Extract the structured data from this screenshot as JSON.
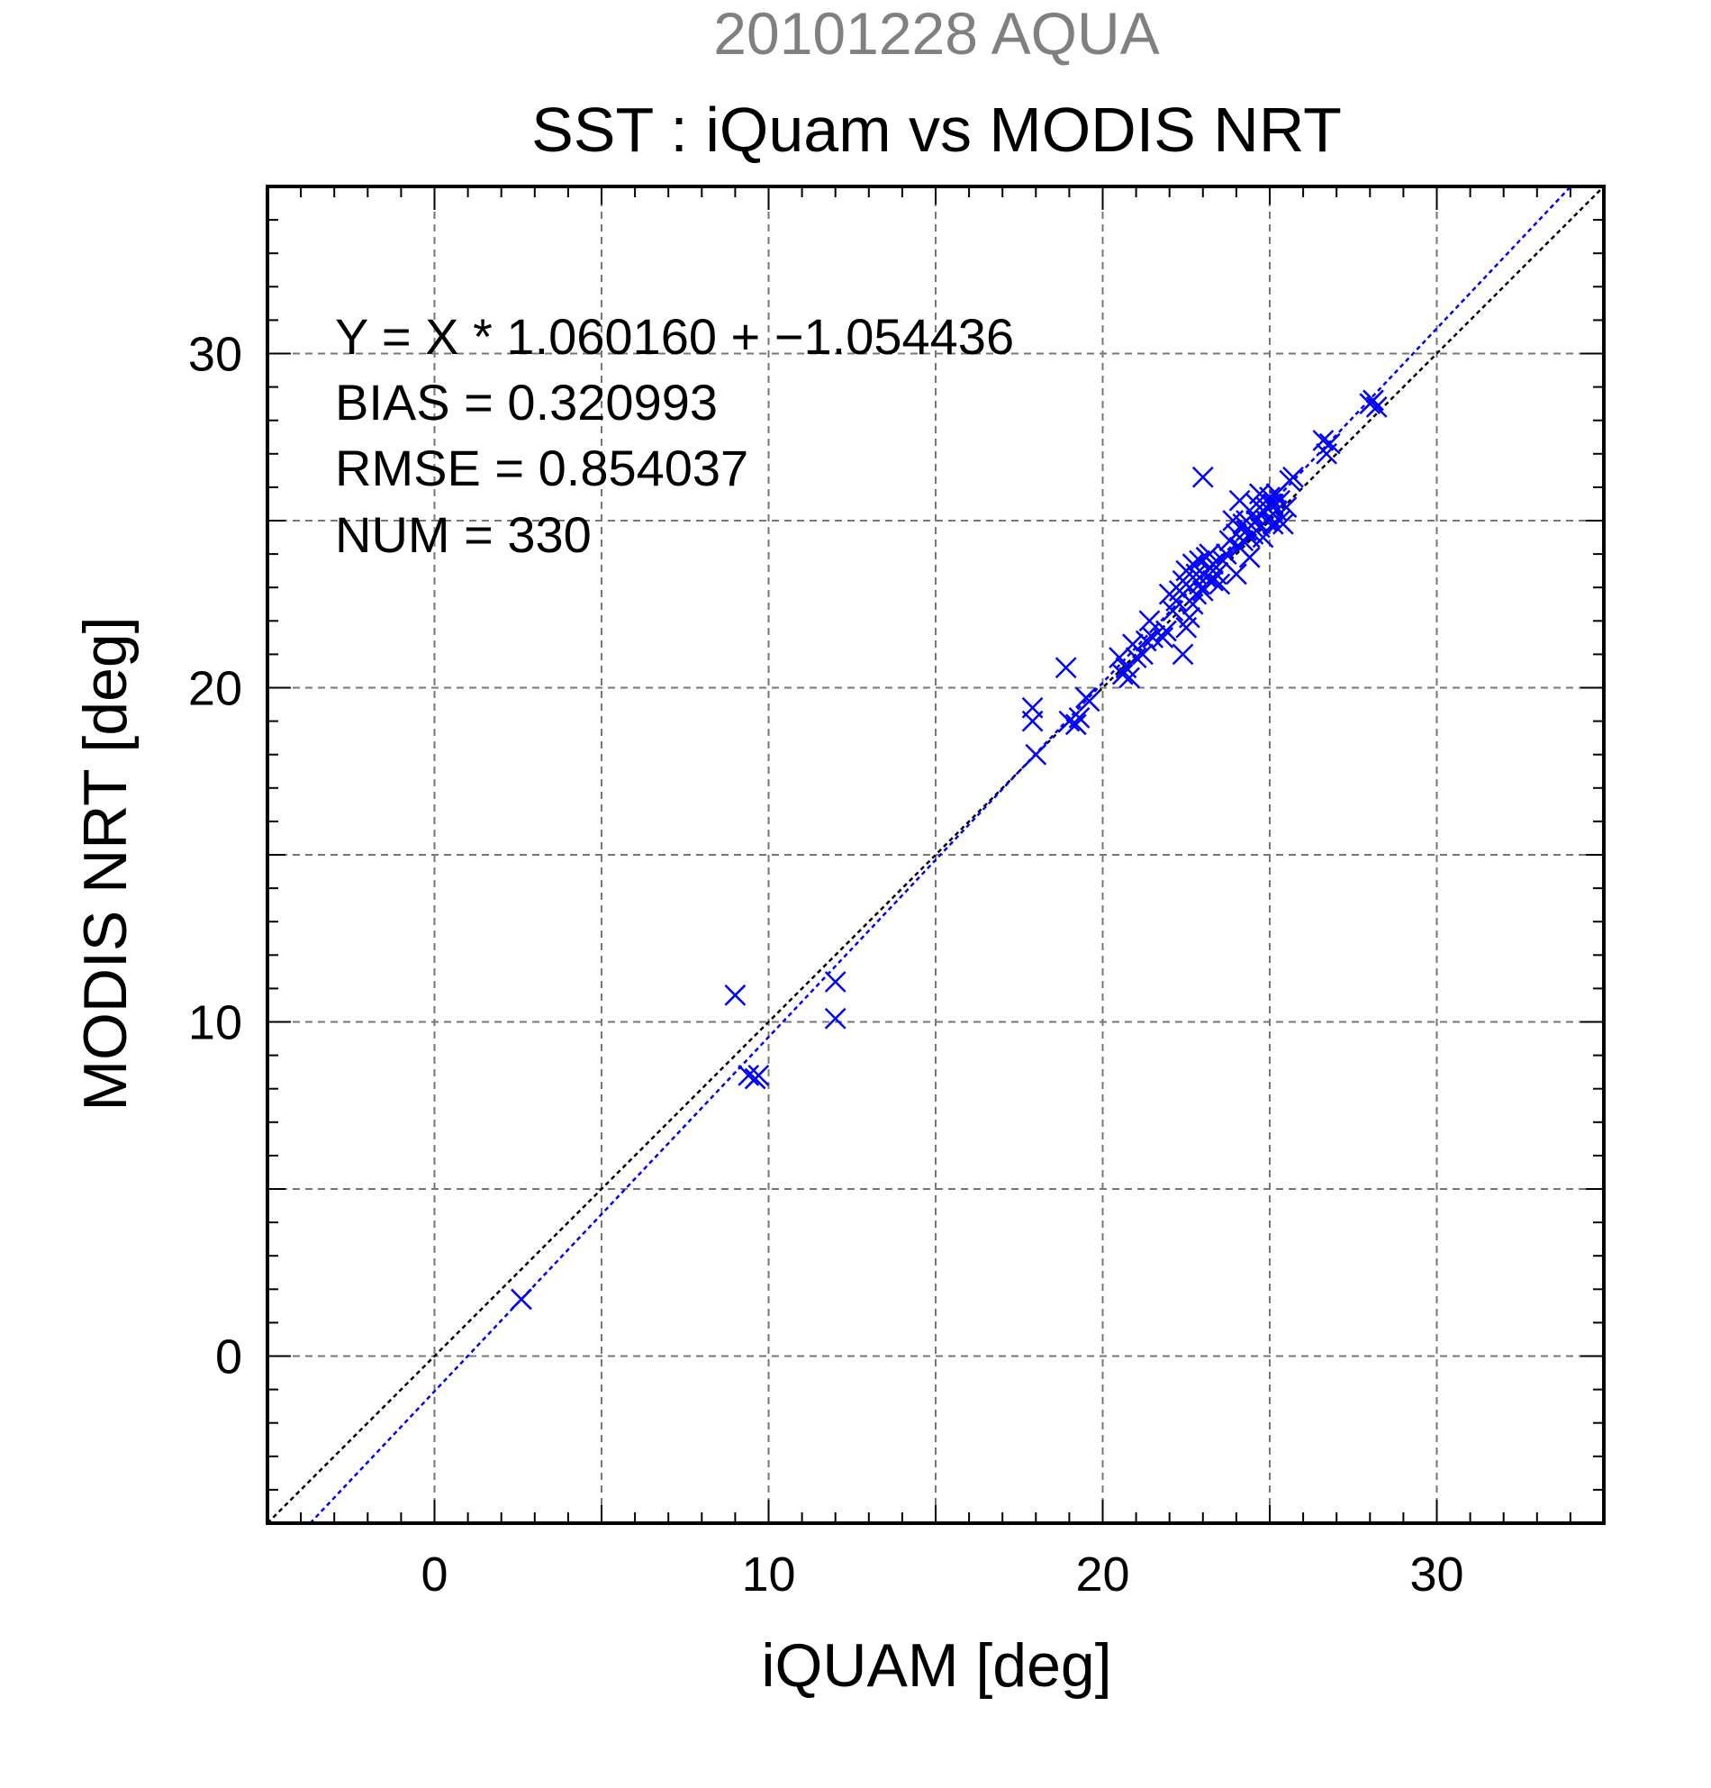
{
  "chart_data": {
    "type": "scatter",
    "date_title": "20101228 AQUA",
    "title": "SST : iQuam vs MODIS NRT",
    "xlabel": "iQUAM [deg]",
    "ylabel": "MODIS NRT [deg]",
    "xlim": [
      -5,
      35
    ],
    "ylim": [
      -5,
      35
    ],
    "major_ticks": [
      0,
      10,
      20,
      30
    ],
    "grid_ticks": [
      0,
      5,
      10,
      15,
      20,
      25,
      30
    ],
    "grid": true,
    "stats": {
      "equation": "Y = X * 1.060160 + −1.054436",
      "bias": "BIAS = 0.320993",
      "rmse": "RMSE = 0.854037",
      "num": "NUM = 330"
    },
    "colors": {
      "points": "#0000ff",
      "fit_line": "#0000ff",
      "identity_line": "#000000",
      "grid": "#777777",
      "date_title": "#808080"
    },
    "lines": [
      {
        "name": "",
        "kind": "identity",
        "slope": 1,
        "intercept": 0
      },
      {
        "name": "",
        "kind": "fit",
        "slope": 1.06016,
        "intercept": -1.054436
      }
    ],
    "points": [
      [
        2.6,
        1.7
      ],
      [
        9.0,
        10.8
      ],
      [
        9.4,
        8.4
      ],
      [
        9.6,
        8.3
      ],
      [
        9.7,
        8.4
      ],
      [
        12.0,
        11.2
      ],
      [
        12.0,
        10.1
      ],
      [
        17.9,
        19.4
      ],
      [
        17.9,
        19.0
      ],
      [
        18.0,
        18.0
      ],
      [
        18.9,
        20.6
      ],
      [
        19.0,
        19.0
      ],
      [
        19.2,
        18.9
      ],
      [
        19.3,
        19.1
      ],
      [
        19.5,
        19.7
      ],
      [
        19.6,
        19.6
      ],
      [
        20.5,
        20.9
      ],
      [
        20.6,
        20.4
      ],
      [
        20.7,
        20.6
      ],
      [
        20.8,
        20.3
      ],
      [
        20.9,
        21.3
      ],
      [
        21.0,
        20.9
      ],
      [
        21.2,
        21.0
      ],
      [
        21.3,
        21.4
      ],
      [
        21.4,
        22.0
      ],
      [
        21.5,
        21.5
      ],
      [
        21.8,
        21.5
      ],
      [
        21.9,
        21.7
      ],
      [
        22.0,
        22.8
      ],
      [
        22.1,
        22.3
      ],
      [
        22.2,
        22.6
      ],
      [
        22.3,
        22.9
      ],
      [
        22.4,
        23.2
      ],
      [
        22.4,
        21.0
      ],
      [
        22.5,
        21.8
      ],
      [
        22.5,
        23.5
      ],
      [
        22.6,
        22.1
      ],
      [
        22.6,
        23.0
      ],
      [
        22.7,
        23.7
      ],
      [
        22.7,
        22.5
      ],
      [
        22.8,
        23.4
      ],
      [
        22.8,
        22.8
      ],
      [
        22.9,
        23.8
      ],
      [
        22.9,
        23.1
      ],
      [
        23.0,
        26.3
      ],
      [
        23.0,
        22.9
      ],
      [
        23.1,
        23.9
      ],
      [
        23.1,
        23.3
      ],
      [
        23.2,
        23.6
      ],
      [
        23.2,
        24.0
      ],
      [
        23.3,
        23.2
      ],
      [
        23.3,
        23.7
      ],
      [
        23.4,
        23.4
      ],
      [
        23.5,
        23.1
      ],
      [
        23.6,
        23.8
      ],
      [
        23.7,
        24.0
      ],
      [
        23.8,
        24.4
      ],
      [
        23.9,
        25.0
      ],
      [
        24.0,
        24.6
      ],
      [
        24.0,
        23.4
      ],
      [
        24.1,
        25.6
      ],
      [
        24.1,
        24.2
      ],
      [
        24.2,
        24.9
      ],
      [
        24.2,
        24.4
      ],
      [
        24.3,
        24.7
      ],
      [
        24.3,
        25.0
      ],
      [
        24.4,
        24.5
      ],
      [
        24.4,
        23.9
      ],
      [
        24.5,
        25.2
      ],
      [
        24.5,
        24.6
      ],
      [
        24.6,
        25.5
      ],
      [
        24.6,
        25.0
      ],
      [
        24.7,
        24.8
      ],
      [
        24.7,
        25.8
      ],
      [
        24.8,
        25.3
      ],
      [
        24.8,
        24.5
      ],
      [
        24.9,
        25.4
      ],
      [
        24.9,
        25.0
      ],
      [
        25.0,
        25.7
      ],
      [
        25.0,
        25.1
      ],
      [
        25.1,
        25.5
      ],
      [
        25.1,
        24.9
      ],
      [
        25.2,
        25.3
      ],
      [
        25.2,
        25.8
      ],
      [
        25.3,
        25.6
      ],
      [
        25.3,
        25.0
      ],
      [
        25.4,
        24.9
      ],
      [
        25.5,
        25.4
      ],
      [
        25.6,
        26.2
      ],
      [
        25.7,
        26.3
      ],
      [
        26.6,
        27.4
      ],
      [
        26.7,
        27.0
      ],
      [
        26.8,
        27.3
      ],
      [
        28.0,
        28.5
      ],
      [
        28.1,
        28.6
      ],
      [
        28.2,
        28.4
      ]
    ]
  }
}
